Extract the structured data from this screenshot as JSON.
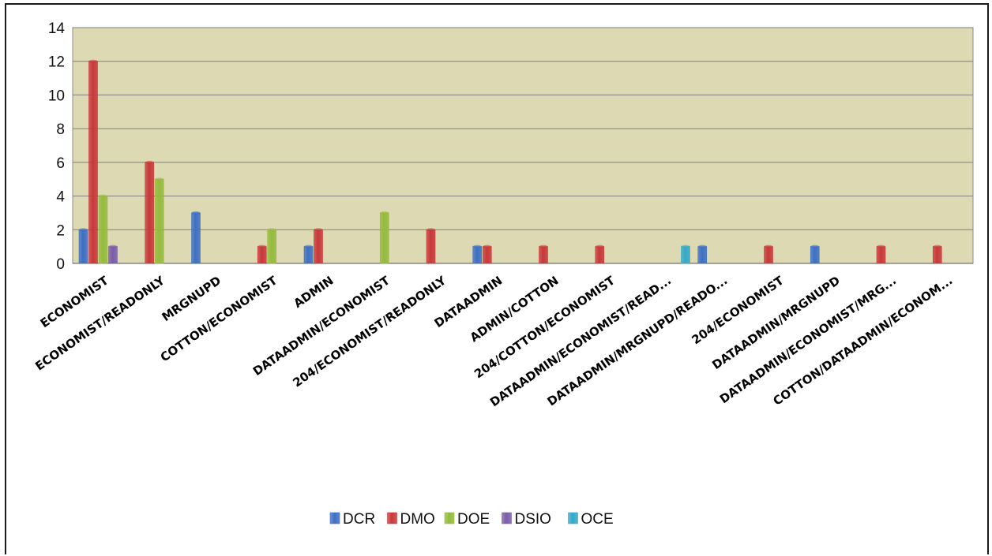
{
  "chart_data": {
    "type": "bar",
    "categories": [
      "ECONOMIST",
      "ECONOMIST/READONLY",
      "MRGNUPD",
      "COTTON/ECONOMIST",
      "ADMIN",
      "DATAADMIN/ECONOMIST",
      "204/ECONOMIST/READONLY",
      "DATAADMIN",
      "ADMIN/COTTON",
      "204/COTTON/ECONOMIST",
      "DATAADMIN/ECONOMIST/READ...",
      "DATAADMIN/MRGNUPD/READO...",
      "204/ECONOMIST",
      "DATAADMIN/MRGNUPD",
      "DATAADMIN/ECONOMIST/MRG...",
      "COTTON/DATAADMIN/ECONOM..."
    ],
    "series": [
      {
        "name": "DCR",
        "color": "#3d6fc4",
        "values": [
          2,
          null,
          3,
          null,
          1,
          null,
          null,
          1,
          null,
          null,
          null,
          1,
          null,
          1,
          null,
          null
        ]
      },
      {
        "name": "DMO",
        "color": "#c8383a",
        "values": [
          12,
          6,
          null,
          1,
          2,
          null,
          2,
          1,
          1,
          1,
          null,
          null,
          1,
          null,
          1,
          1
        ]
      },
      {
        "name": "DOE",
        "color": "#95bb3d",
        "values": [
          4,
          5,
          null,
          2,
          null,
          3,
          null,
          null,
          null,
          null,
          null,
          null,
          null,
          null,
          null,
          null
        ]
      },
      {
        "name": "DSIO",
        "color": "#7a5ca8",
        "values": [
          1,
          null,
          null,
          null,
          null,
          null,
          null,
          null,
          null,
          null,
          null,
          null,
          null,
          null,
          null,
          null
        ]
      },
      {
        "name": "OCE",
        "color": "#33a9c9",
        "values": [
          null,
          null,
          null,
          null,
          null,
          null,
          null,
          null,
          null,
          null,
          1,
          null,
          null,
          null,
          null,
          null
        ]
      }
    ],
    "yticks": [
      "0",
      "2",
      "4",
      "6",
      "8",
      "10",
      "12",
      "14"
    ],
    "ylim": [
      0,
      14
    ],
    "grid": true,
    "legend": "bottom",
    "plot_bg": "#ddd9b2"
  }
}
